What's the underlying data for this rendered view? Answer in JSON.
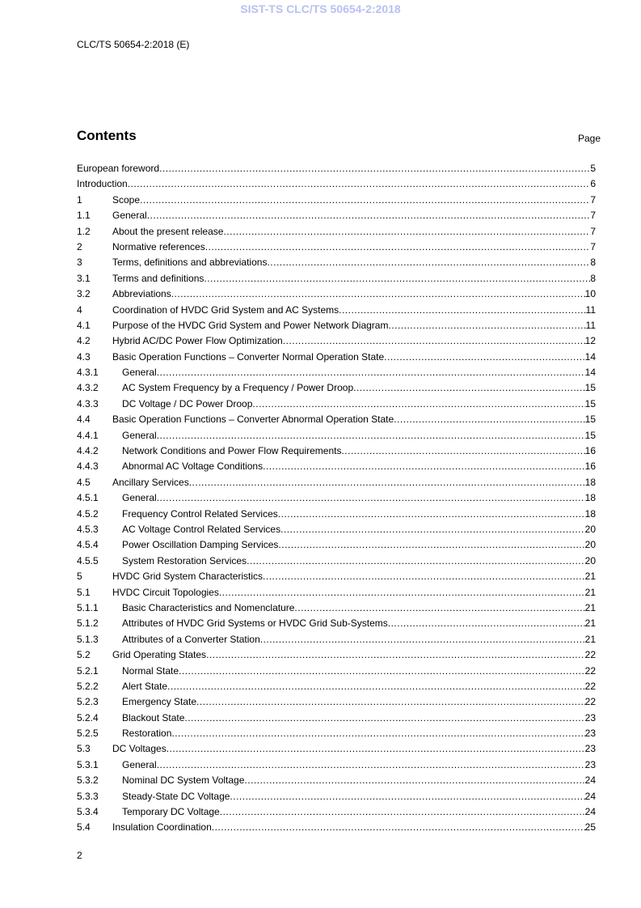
{
  "watermark": "SIST-TS CLC/TS 50654-2:2018",
  "header": "CLC/TS 50654-2:2018 (E)",
  "title": "Contents",
  "page_label": "Page",
  "toc": [
    {
      "num": "",
      "title": "European foreword",
      "page": "5",
      "level": 0
    },
    {
      "num": "",
      "title": "Introduction",
      "page": "6",
      "level": 0
    },
    {
      "num": "1",
      "title": "Scope",
      "page": "7",
      "level": 1
    },
    {
      "num": "1.1",
      "title": "General",
      "page": "7",
      "level": 2
    },
    {
      "num": "1.2",
      "title": "About the present release",
      "page": "7",
      "level": 2
    },
    {
      "num": "2",
      "title": "Normative references",
      "page": "7",
      "level": 1
    },
    {
      "num": "3",
      "title": "Terms, definitions and abbreviations",
      "page": "8",
      "level": 1
    },
    {
      "num": "3.1",
      "title": "Terms and definitions",
      "page": "8",
      "level": 2
    },
    {
      "num": "3.2",
      "title": "Abbreviations",
      "page": "10",
      "level": 2
    },
    {
      "num": "4",
      "title": "Coordination of HVDC Grid System and AC Systems",
      "page": "11",
      "level": 1
    },
    {
      "num": "4.1",
      "title": "Purpose of the HVDC Grid System and Power Network Diagram",
      "page": "11",
      "level": 2
    },
    {
      "num": "4.2",
      "title": "Hybrid AC/DC Power Flow Optimization",
      "page": "12",
      "level": 2
    },
    {
      "num": "4.3",
      "title": "Basic Operation Functions – Converter Normal Operation State",
      "page": "14",
      "level": 2
    },
    {
      "num": "4.3.1",
      "title": "General",
      "page": "14",
      "level": 3
    },
    {
      "num": "4.3.2",
      "title": "AC System Frequency by a Frequency / Power Droop",
      "page": "15",
      "level": 3
    },
    {
      "num": "4.3.3",
      "title": "DC Voltage / DC Power Droop",
      "page": "15",
      "level": 3
    },
    {
      "num": "4.4",
      "title": "Basic Operation Functions – Converter Abnormal Operation State",
      "page": "15",
      "level": 2
    },
    {
      "num": "4.4.1",
      "title": "General",
      "page": "15",
      "level": 3
    },
    {
      "num": "4.4.2",
      "title": "Network Conditions and Power Flow Requirements",
      "page": "16",
      "level": 3
    },
    {
      "num": "4.4.3",
      "title": "Abnormal AC Voltage Conditions",
      "page": "16",
      "level": 3
    },
    {
      "num": "4.5",
      "title": "Ancillary Services",
      "page": "18",
      "level": 2
    },
    {
      "num": "4.5.1",
      "title": "General",
      "page": "18",
      "level": 3
    },
    {
      "num": "4.5.2",
      "title": "Frequency Control Related Services",
      "page": "18",
      "level": 3
    },
    {
      "num": "4.5.3",
      "title": "AC Voltage Control Related Services",
      "page": "20",
      "level": 3
    },
    {
      "num": "4.5.4",
      "title": "Power Oscillation Damping Services",
      "page": "20",
      "level": 3
    },
    {
      "num": "4.5.5",
      "title": "System Restoration Services",
      "page": "20",
      "level": 3
    },
    {
      "num": "5",
      "title": "HVDC Grid System Characteristics",
      "page": "21",
      "level": 1
    },
    {
      "num": "5.1",
      "title": "HVDC Circuit Topologies",
      "page": "21",
      "level": 2
    },
    {
      "num": "5.1.1",
      "title": "Basic Characteristics and Nomenclature",
      "page": "21",
      "level": 3
    },
    {
      "num": "5.1.2",
      "title": "Attributes of HVDC Grid Systems or HVDC Grid Sub-Systems",
      "page": "21",
      "level": 3
    },
    {
      "num": "5.1.3",
      "title": "Attributes of a Converter Station",
      "page": "21",
      "level": 3
    },
    {
      "num": "5.2",
      "title": "Grid Operating States",
      "page": "22",
      "level": 2
    },
    {
      "num": "5.2.1",
      "title": "Normal State",
      "page": "22",
      "level": 3
    },
    {
      "num": "5.2.2",
      "title": "Alert State",
      "page": "22",
      "level": 3
    },
    {
      "num": "5.2.3",
      "title": "Emergency State",
      "page": "22",
      "level": 3
    },
    {
      "num": "5.2.4",
      "title": "Blackout State",
      "page": "23",
      "level": 3
    },
    {
      "num": "5.2.5",
      "title": "Restoration",
      "page": "23",
      "level": 3
    },
    {
      "num": "5.3",
      "title": "DC Voltages",
      "page": "23",
      "level": 2
    },
    {
      "num": "5.3.1",
      "title": "General",
      "page": "23",
      "level": 3
    },
    {
      "num": "5.3.2",
      "title": "Nominal DC System Voltage",
      "page": "24",
      "level": 3
    },
    {
      "num": "5.3.3",
      "title": "Steady-State DC Voltage",
      "page": "24",
      "level": 3
    },
    {
      "num": "5.3.4",
      "title": "Temporary DC Voltage",
      "page": "24",
      "level": 3
    },
    {
      "num": "5.4",
      "title": "Insulation Coordination",
      "page": "25",
      "level": 2
    }
  ],
  "footer_page": "2"
}
